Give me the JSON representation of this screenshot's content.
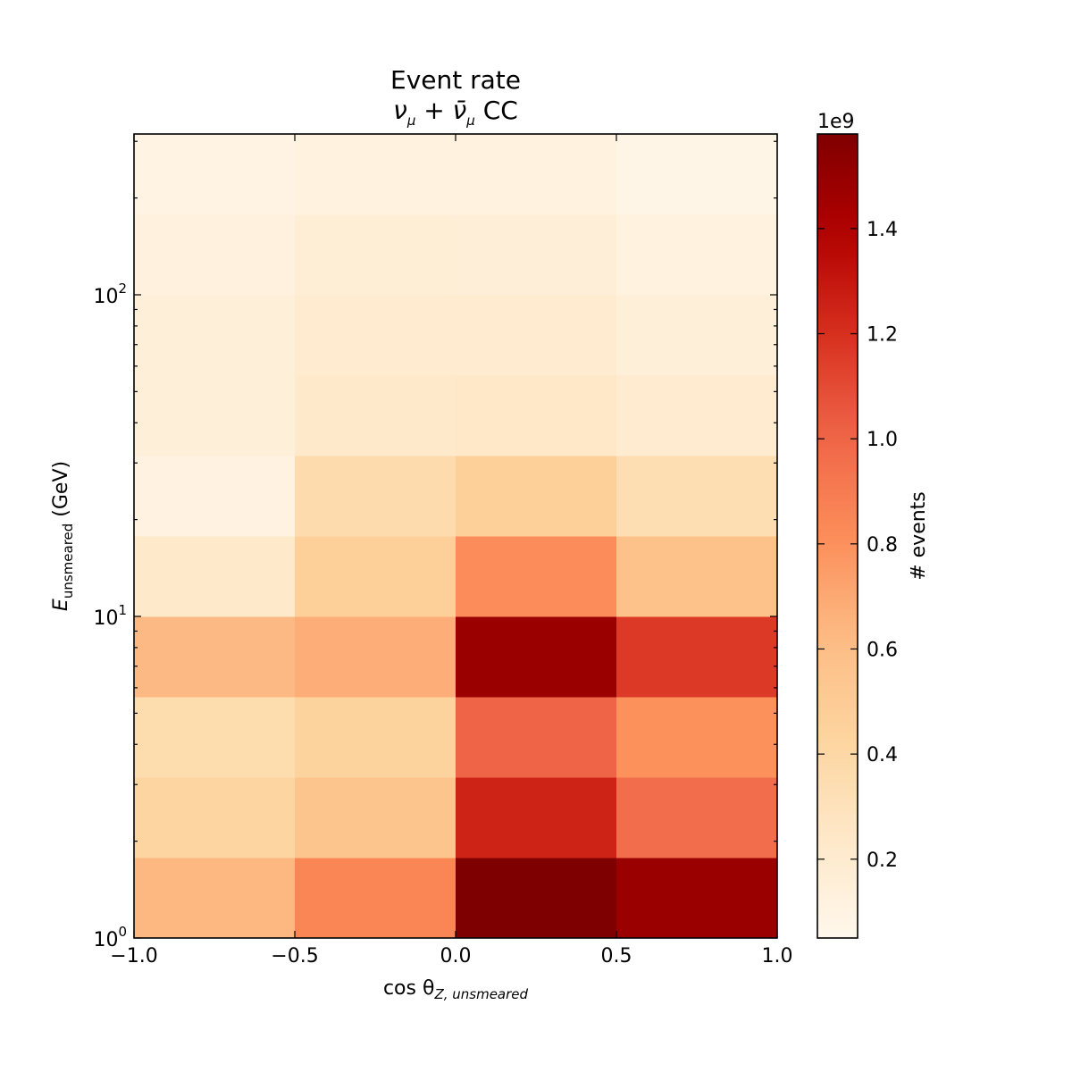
{
  "chart_data": {
    "type": "heatmap",
    "title": "Event rate",
    "subtitle": {
      "prefix": "ν",
      "sub1": "μ",
      "plus": " + ",
      "nubar": "ν̄",
      "sub2": "μ",
      "suffix": " CC"
    },
    "xlabel": {
      "main": "cos θ",
      "sub": "Z, unsmeared"
    },
    "ylabel": {
      "main": "E",
      "sub": "unsmeared",
      "suffix": " (GeV)"
    },
    "x_edges": [
      -1.0,
      -0.5,
      0.0,
      0.5,
      1.0
    ],
    "y_edges": [
      1.0,
      1.778,
      3.162,
      5.623,
      10.0,
      17.78,
      31.62,
      56.23,
      100.0,
      177.8,
      316.2
    ],
    "x_scale": "linear",
    "y_scale": "log",
    "xlim": [
      -1.0,
      1.0
    ],
    "ylim": [
      1.0,
      316.2
    ],
    "x_ticks": [
      -1.0,
      -0.5,
      0.0,
      0.5,
      1.0
    ],
    "x_tick_labels": [
      "−1.0",
      "−0.5",
      "0.0",
      "0.5",
      "1.0"
    ],
    "y_ticks": [
      {
        "value": 1,
        "base": "10",
        "exp": "0"
      },
      {
        "value": 10,
        "base": "10",
        "exp": "1"
      },
      {
        "value": 100,
        "base": "10",
        "exp": "2"
      }
    ],
    "values": [
      [
        0.64,
        0.85,
        1.58,
        1.48
      ],
      [
        0.42,
        0.55,
        1.25,
        0.97
      ],
      [
        0.36,
        0.44,
        1.01,
        0.8
      ],
      [
        0.63,
        0.68,
        1.48,
        1.16
      ],
      [
        0.23,
        0.46,
        0.82,
        0.58
      ],
      [
        0.11,
        0.37,
        0.46,
        0.34
      ],
      [
        0.15,
        0.23,
        0.24,
        0.2
      ],
      [
        0.15,
        0.2,
        0.2,
        0.15
      ],
      [
        0.13,
        0.17,
        0.16,
        0.12
      ],
      [
        0.1,
        0.12,
        0.12,
        0.08
      ]
    ],
    "values_note_unit": "×1e9 events",
    "colorbar": {
      "label": "# events",
      "offset_text": "1e9",
      "vmin": 0.05,
      "vmax": 1.58,
      "ticks": [
        0.2,
        0.4,
        0.6,
        0.8,
        1.0,
        1.2,
        1.4
      ],
      "tick_labels": [
        "0.2",
        "0.4",
        "0.6",
        "0.8",
        "1.0",
        "1.2",
        "1.4"
      ]
    },
    "colormap": {
      "name": "OrRd",
      "stops": [
        "#fff7ec",
        "#fee8c8",
        "#fdd49e",
        "#fdbb84",
        "#fc8d59",
        "#ef6548",
        "#d7301f",
        "#b30000",
        "#7f0000"
      ]
    }
  }
}
